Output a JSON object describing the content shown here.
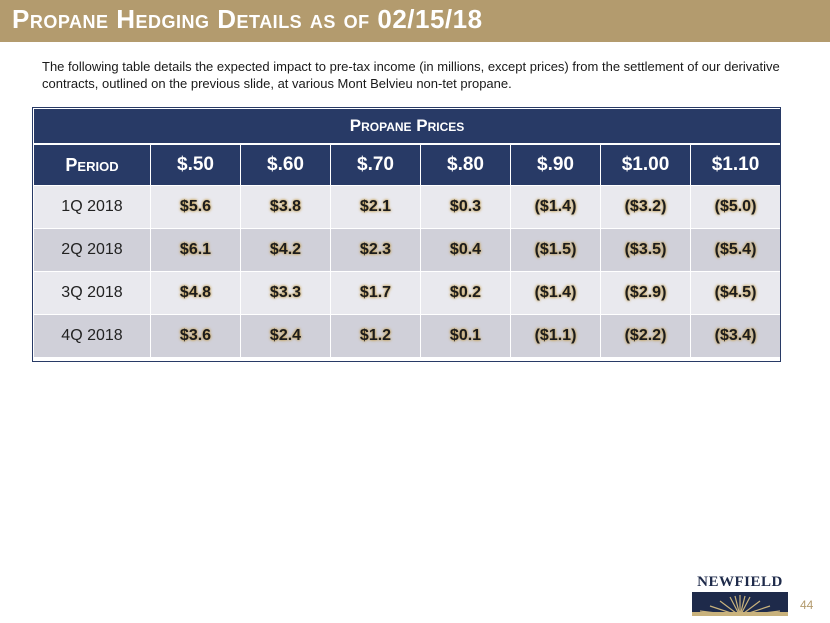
{
  "slide": {
    "title": "Propane Hedging Details as of 02/15/18",
    "intro": "The following table details the expected impact to pre-tax income (in millions, except prices) from the settlement of our derivative contracts, outlined on the previous slide, at various Mont Belvieu non-tet propane.",
    "page_number": "44",
    "logo_text": "NEWFIELD"
  },
  "table": {
    "group_header": "Propane Prices",
    "period_header": "Period",
    "price_headers": [
      "$.50",
      "$.60",
      "$.70",
      "$.80",
      "$.90",
      "$1.00",
      "$1.10"
    ],
    "rows": [
      {
        "period": "1Q 2018",
        "values": [
          "$5.6",
          "$3.8",
          "$2.1",
          "$0.3",
          "($1.4)",
          "($3.2)",
          "($5.0)"
        ]
      },
      {
        "period": "2Q 2018",
        "values": [
          "$6.1",
          "$4.2",
          "$2.3",
          "$0.4",
          "($1.5)",
          "($3.5)",
          "($5.4)"
        ]
      },
      {
        "period": "3Q 2018",
        "values": [
          "$4.8",
          "$3.3",
          "$1.7",
          "$0.2",
          "($1.4)",
          "($2.9)",
          "($4.5)"
        ]
      },
      {
        "period": "4Q 2018",
        "values": [
          "$3.6",
          "$2.4",
          "$1.2",
          "$0.1",
          "($1.1)",
          "($2.2)",
          "($3.4)"
        ]
      }
    ]
  },
  "colors": {
    "title_bar": "#b39b6e",
    "table_header": "#283a66",
    "row_light": "#e9e9ee",
    "row_dark": "#d0d0d9"
  }
}
